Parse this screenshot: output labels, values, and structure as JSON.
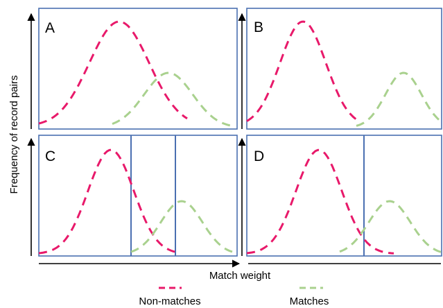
{
  "figure": {
    "panels": [
      "A",
      "B",
      "C",
      "D"
    ],
    "axis": {
      "x_label": "Match weight",
      "y_label": "Frequency of record pairs"
    },
    "legend": [
      {
        "label": "Non-matches",
        "color": "#e8196a",
        "style": "dashed"
      },
      {
        "label": "Matches",
        "color": "#a9d18e",
        "style": "dashed"
      }
    ],
    "colors": {
      "non_matches": "#e8196a",
      "matches": "#a9d18e",
      "panel_border": "#4a6fb1",
      "threshold_line": "#4a6fb1",
      "axis": "#000000"
    },
    "thresholds": {
      "A": 0,
      "B": 0,
      "C": 2,
      "D": 1
    }
  }
}
